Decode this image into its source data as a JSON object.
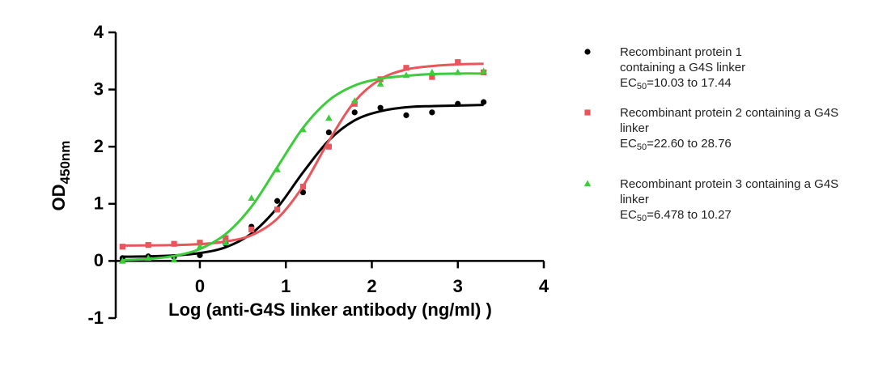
{
  "chart_data": {
    "type": "scatter",
    "xlabel": "Log (anti-G4S linker antibody (ng/ml) )",
    "ylabel": "OD",
    "ylabel_sub": "450nm",
    "ec_label": "EC",
    "ec_sub": "50",
    "xlim": [
      -1,
      4
    ],
    "ylim": [
      -1,
      4
    ],
    "xticks": [
      0,
      1,
      2,
      3,
      4
    ],
    "yticks": [
      -1,
      0,
      1,
      2,
      3,
      4
    ],
    "x": [
      -0.9,
      -0.6,
      -0.3,
      0,
      0.3,
      0.6,
      0.9,
      1.2,
      1.5,
      1.8,
      2.1,
      2.4,
      2.7,
      3.0,
      3.3
    ],
    "series": [
      {
        "name": "Recombinant protein 1 containing a G4S linker",
        "ec50": "=10.03 to 17.44",
        "color": "#000000",
        "marker": "circle",
        "values": [
          0.05,
          0.08,
          0.07,
          0.1,
          0.3,
          0.6,
          1.05,
          1.2,
          2.25,
          2.6,
          2.68,
          2.55,
          2.6,
          2.75,
          2.78
        ],
        "curve_values": [
          0.074,
          0.08,
          0.096,
          0.138,
          0.24,
          0.48,
          0.93,
          1.55,
          2.11,
          2.46,
          2.62,
          2.69,
          2.71,
          2.72,
          2.73
        ]
      },
      {
        "name": "Recombinant protein 2 containing a G4S linker",
        "ec50": "=22.60 to 28.76",
        "color": "#e8555a",
        "marker": "square",
        "values": [
          0.25,
          0.28,
          0.3,
          0.32,
          0.4,
          0.55,
          0.9,
          1.3,
          2.0,
          2.75,
          3.18,
          3.38,
          3.22,
          3.48,
          3.3
        ],
        "curve_values": [
          0.27,
          0.273,
          0.279,
          0.294,
          0.34,
          0.45,
          0.74,
          1.31,
          2.1,
          2.79,
          3.18,
          3.35,
          3.41,
          3.44,
          3.45
        ]
      },
      {
        "name": "Recombinant protein 3 containing a G4S linker",
        "ec50": "=6.478 to 10.27",
        "color": "#3ccc3c",
        "marker": "triangle",
        "values": [
          0.0,
          0.05,
          0.02,
          0.25,
          0.32,
          1.1,
          1.6,
          2.3,
          2.5,
          2.8,
          3.1,
          3.25,
          3.3,
          3.3,
          3.32
        ],
        "curve_values": [
          0.015,
          0.036,
          0.088,
          0.21,
          0.47,
          0.95,
          1.64,
          2.33,
          2.81,
          3.07,
          3.19,
          3.24,
          3.27,
          3.28,
          3.28
        ]
      }
    ]
  }
}
